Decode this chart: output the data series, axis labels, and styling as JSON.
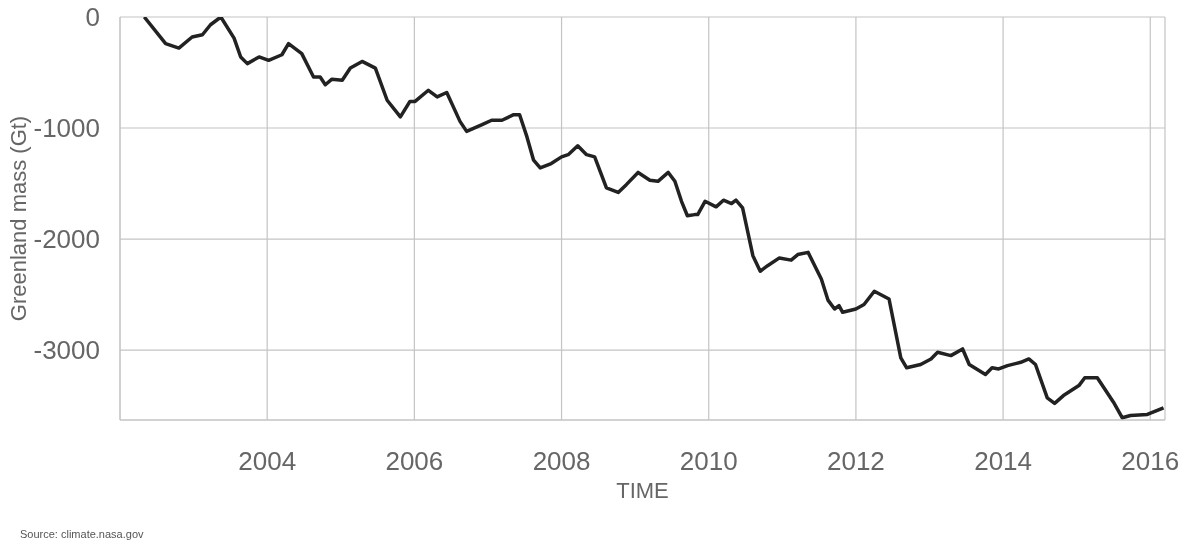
{
  "chart_data": {
    "type": "line",
    "xlabel": "TIME",
    "ylabel": "Greenland mass (Gt)",
    "annotations": [
      "Source: climate.nasa.gov"
    ],
    "x": [
      2002.33,
      2002.62,
      2002.8,
      2002.98,
      2003.12,
      2003.23,
      2003.37,
      2003.55,
      2003.64,
      2003.73,
      2003.89,
      2004.02,
      2004.2,
      2004.29,
      2004.47,
      2004.63,
      2004.72,
      2004.79,
      2004.88,
      2005.02,
      2005.13,
      2005.29,
      2005.47,
      2005.63,
      2005.81,
      2005.94,
      2006.01,
      2006.19,
      2006.31,
      2006.44,
      2006.62,
      2006.71,
      2006.92,
      2007.05,
      2007.19,
      2007.35,
      2007.43,
      2007.53,
      2007.62,
      2007.71,
      2007.86,
      2008.0,
      2008.09,
      2008.22,
      2008.34,
      2008.45,
      2008.61,
      2008.77,
      2008.88,
      2009.04,
      2009.2,
      2009.31,
      2009.45,
      2009.54,
      2009.63,
      2009.71,
      2009.81,
      2009.85,
      2009.95,
      2010.1,
      2010.2,
      2010.31,
      2010.37,
      2010.46,
      2010.6,
      2010.7,
      2010.8,
      2010.96,
      2011.12,
      2011.21,
      2011.35,
      2011.53,
      2011.62,
      2011.71,
      2011.77,
      2011.82,
      2012.0,
      2012.11,
      2012.25,
      2012.45,
      2012.61,
      2012.69,
      2012.88,
      2013.02,
      2013.11,
      2013.29,
      2013.45,
      2013.54,
      2013.76,
      2013.85,
      2013.94,
      2014.06,
      2014.24,
      2014.35,
      2014.44,
      2014.6,
      2014.7,
      2014.82,
      2015.03,
      2015.11,
      2015.28,
      2015.5,
      2015.62,
      2015.73,
      2015.96,
      2016.18
    ],
    "series": [
      {
        "color": "#222222",
        "values": [
          0,
          -240,
          -280,
          -180,
          -160,
          -70,
          0,
          -190,
          -360,
          -420,
          -360,
          -390,
          -340,
          -240,
          -330,
          -540,
          -540,
          -610,
          -560,
          -570,
          -460,
          -400,
          -460,
          -750,
          -900,
          -760,
          -760,
          -660,
          -720,
          -680,
          -940,
          -1030,
          -970,
          -930,
          -930,
          -880,
          -880,
          -1080,
          -1290,
          -1360,
          -1320,
          -1260,
          -1240,
          -1160,
          -1240,
          -1260,
          -1540,
          -1580,
          -1510,
          -1400,
          -1470,
          -1480,
          -1400,
          -1480,
          -1660,
          -1790,
          -1780,
          -1780,
          -1660,
          -1710,
          -1650,
          -1680,
          -1650,
          -1720,
          -2150,
          -2290,
          -2240,
          -2170,
          -2190,
          -2140,
          -2120,
          -2360,
          -2550,
          -2630,
          -2600,
          -2660,
          -2630,
          -2590,
          -2470,
          -2540,
          -3070,
          -3160,
          -3130,
          -3080,
          -3020,
          -3050,
          -2990,
          -3130,
          -3220,
          -3160,
          -3170,
          -3140,
          -3110,
          -3080,
          -3130,
          -3430,
          -3480,
          -3410,
          -3320,
          -3250,
          -3250,
          -3470,
          -3610,
          -3590,
          -3580,
          -3520
        ]
      }
    ],
    "xlim": [
      2002,
      2016.2
    ],
    "xticks": [
      2004,
      2006,
      2008,
      2010,
      2012,
      2014,
      2016
    ],
    "ylim": [
      -3630,
      0
    ],
    "yticks": [
      -3000,
      -2000,
      -1000,
      0
    ],
    "grid": true,
    "marker": "none"
  }
}
